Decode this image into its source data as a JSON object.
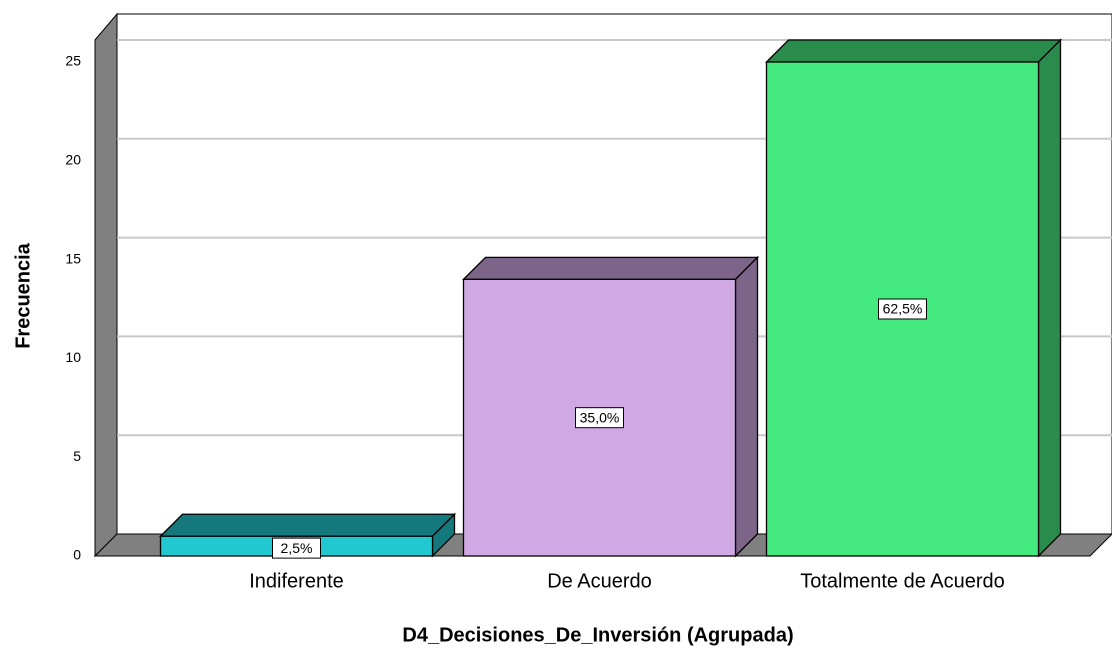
{
  "chart_data": {
    "type": "bar3d",
    "x_label": "D4_Decisiones_De_Inversión (Agrupada)",
    "y_label": "Frecuencia",
    "categories": [
      "Indiferente",
      "De Acuerdo",
      "Totalmente de Acuerdo"
    ],
    "values": [
      1,
      14,
      25
    ],
    "percent_labels": [
      "2,5%",
      "35,0%",
      "62,5%"
    ],
    "colors": [
      "#22c8d0",
      "#d0a8e4",
      "#44ea80"
    ],
    "ylim": [
      0,
      25
    ],
    "yticks": [
      0,
      5,
      10,
      15,
      20,
      25
    ],
    "grid": true
  }
}
